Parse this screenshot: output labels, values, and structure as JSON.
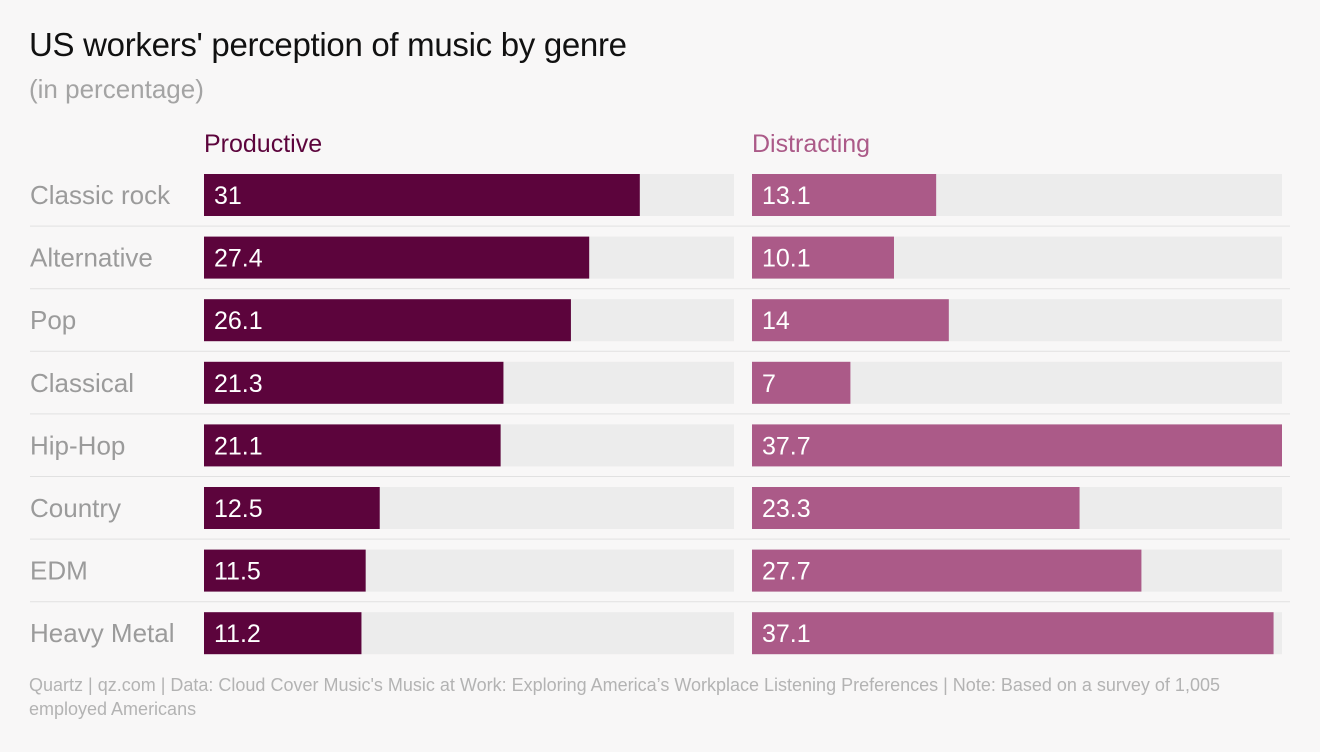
{
  "chart_data": {
    "type": "bar",
    "title": "US workers' perception of music by genre",
    "subtitle": "(in percentage)",
    "categories": [
      "Classic rock",
      "Alternative",
      "Pop",
      "Classical",
      "Hip-Hop",
      "Country",
      "EDM",
      "Heavy Metal"
    ],
    "series": [
      {
        "name": "Productive",
        "values": [
          31,
          27.4,
          26.1,
          21.3,
          21.1,
          12.5,
          11.5,
          11.2
        ],
        "color": "#5c043c"
      },
      {
        "name": "Distracting",
        "values": [
          13.1,
          10.1,
          14,
          7,
          37.7,
          23.3,
          27.7,
          37.1
        ],
        "color": "#ab5a88"
      }
    ],
    "xlim": [
      0,
      37.7
    ],
    "track_color": "#ececec",
    "grid": false
  },
  "footer": {
    "source": "Quartz | qz.com | Data: Cloud Cover Music's Music at Work: Exploring America’s Workplace Listening Preferences | Note: Based on a survey of 1,005 employed Americans"
  }
}
